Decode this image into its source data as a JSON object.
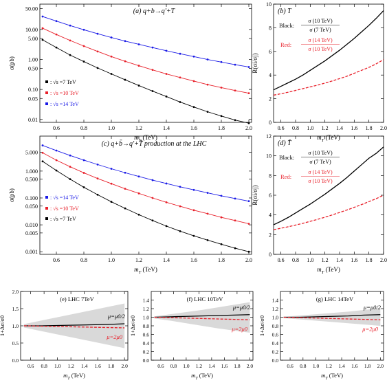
{
  "chart_data": [
    {
      "id": "a",
      "type": "line",
      "title": "(a) q+b→q′+T",
      "xlabel": "m_T (TeV)",
      "ylabel": "σ(pb)",
      "xlim": [
        0.48,
        2.02
      ],
      "ylim": [
        0.008,
        70
      ],
      "yscale": "log",
      "xticks": [
        "0.6",
        "0.8",
        "1.0",
        "1.2",
        "1.4",
        "1.6",
        "1.8",
        "2.0"
      ],
      "yticks": [
        "0.01",
        "0.05",
        "0.10",
        "0.50",
        "1.00",
        "5.00",
        "10.00",
        "50.00"
      ],
      "legend_position": "left",
      "series": [
        {
          "name": "√s =7 TeV",
          "color": "#000000",
          "x": [
            0.5,
            0.6,
            0.7,
            0.8,
            0.9,
            1.0,
            1.1,
            1.2,
            1.3,
            1.4,
            1.5,
            1.6,
            1.7,
            1.8,
            1.9,
            2.0
          ],
          "values": [
            4.5,
            2.5,
            1.4,
            0.85,
            0.52,
            0.33,
            0.21,
            0.135,
            0.088,
            0.058,
            0.038,
            0.026,
            0.018,
            0.013,
            0.0095,
            0.0075
          ]
        },
        {
          "name": "√s =10 TeV",
          "color": "#e8202a",
          "x": [
            0.5,
            0.6,
            0.7,
            0.8,
            0.9,
            1.0,
            1.1,
            1.2,
            1.3,
            1.4,
            1.5,
            1.6,
            1.7,
            1.8,
            1.9,
            2.0
          ],
          "values": [
            11.0,
            6.8,
            4.3,
            2.8,
            1.85,
            1.25,
            0.87,
            0.62,
            0.45,
            0.33,
            0.25,
            0.19,
            0.145,
            0.115,
            0.092,
            0.075
          ]
        },
        {
          "name": "√s =14 TeV",
          "color": "#1a1ae6",
          "x": [
            0.5,
            0.6,
            0.7,
            0.8,
            0.9,
            1.0,
            1.1,
            1.2,
            1.3,
            1.4,
            1.5,
            1.6,
            1.7,
            1.8,
            1.9,
            2.0
          ],
          "values": [
            27.0,
            19.0,
            13.5,
            9.8,
            7.2,
            5.4,
            4.1,
            3.2,
            2.5,
            1.95,
            1.55,
            1.25,
            1.0,
            0.82,
            0.67,
            0.56
          ]
        }
      ]
    },
    {
      "id": "b",
      "type": "line",
      "title": "(b) T",
      "xlabel": "m_T (TeV)",
      "ylabel": "R(σ_i/σ_j)",
      "xlim": [
        0.5,
        2.0
      ],
      "ylim": [
        0,
        10
      ],
      "xticks": [
        "0.6",
        "0.8",
        "1.0",
        "1.2",
        "1.4",
        "1.6",
        "1.8",
        "2.0"
      ],
      "yticks": [
        "0",
        "2",
        "4",
        "6",
        "8",
        "10"
      ],
      "annotation_black_label": "Black:",
      "annotation_black_num": "σ (10 TeV)",
      "annotation_black_den": "σ (7 TeV)",
      "annotation_red_label": "Red:",
      "annotation_red_num": "σ (14 TeV)",
      "annotation_red_den": "σ (10 TeV)",
      "series": [
        {
          "name": "σ (10 TeV) / σ (7 TeV)",
          "color": "#000000",
          "style": "solid",
          "x": [
            0.5,
            0.6,
            0.7,
            0.8,
            0.9,
            1.0,
            1.1,
            1.2,
            1.3,
            1.4,
            1.5,
            1.6,
            1.7,
            1.8,
            1.9,
            2.0
          ],
          "values": [
            2.75,
            3.05,
            3.35,
            3.65,
            4.0,
            4.4,
            4.8,
            5.2,
            5.65,
            6.1,
            6.6,
            7.1,
            7.65,
            8.2,
            8.8,
            9.45
          ]
        },
        {
          "name": "σ (14 TeV) / σ (10 TeV)",
          "color": "#e8202a",
          "style": "dashed",
          "x": [
            0.5,
            0.6,
            0.7,
            0.8,
            0.9,
            1.0,
            1.1,
            1.2,
            1.3,
            1.4,
            1.5,
            1.6,
            1.7,
            1.8,
            1.9,
            2.0
          ],
          "values": [
            2.3,
            2.42,
            2.55,
            2.7,
            2.85,
            3.0,
            3.15,
            3.32,
            3.5,
            3.7,
            3.9,
            4.15,
            4.4,
            4.65,
            4.95,
            5.3
          ]
        }
      ]
    },
    {
      "id": "c",
      "type": "line",
      "title": "(c) q+b̄→q′+T̄ production at the LHC",
      "xlabel": "m_T (TeV)",
      "ylabel": "σ(pb)",
      "xlim": [
        0.48,
        2.02
      ],
      "ylim": [
        0.0008,
        20
      ],
      "yscale": "log",
      "xticks": [
        "0.6",
        "0.8",
        "1.0",
        "1.2",
        "1.4",
        "1.6",
        "1.8",
        "2.0"
      ],
      "yticks": [
        "0.001",
        "0.005",
        "0.010",
        "0.050",
        "0.100",
        "0.500",
        "1.000",
        "5.000"
      ],
      "legend_position": "left",
      "series": [
        {
          "name": "√s =14 TeV",
          "color": "#1a1ae6",
          "x": [
            0.5,
            0.6,
            0.7,
            0.8,
            0.9,
            1.0,
            1.1,
            1.2,
            1.3,
            1.4,
            1.5,
            1.6,
            1.7,
            1.8,
            1.9,
            2.0
          ],
          "values": [
            9.0,
            5.8,
            3.8,
            2.55,
            1.75,
            1.22,
            0.87,
            0.63,
            0.46,
            0.345,
            0.26,
            0.2,
            0.155,
            0.12,
            0.095,
            0.076
          ]
        },
        {
          "name": "√s =10 TeV",
          "color": "#e8202a",
          "x": [
            0.5,
            0.6,
            0.7,
            0.8,
            0.9,
            1.0,
            1.1,
            1.2,
            1.3,
            1.4,
            1.5,
            1.6,
            1.7,
            1.8,
            1.9,
            2.0
          ],
          "values": [
            4.8,
            2.55,
            1.45,
            0.86,
            0.53,
            0.34,
            0.22,
            0.148,
            0.1,
            0.069,
            0.049,
            0.035,
            0.026,
            0.019,
            0.0145,
            0.011
          ]
        },
        {
          "name": "√s =7 TeV",
          "color": "#000000",
          "x": [
            0.5,
            0.6,
            0.7,
            0.8,
            0.9,
            1.0,
            1.1,
            1.2,
            1.3,
            1.4,
            1.5,
            1.6,
            1.7,
            1.8,
            1.9,
            2.0
          ],
          "values": [
            2.3,
            1.05,
            0.5,
            0.25,
            0.132,
            0.072,
            0.041,
            0.024,
            0.0145,
            0.009,
            0.0058,
            0.0039,
            0.0027,
            0.0019,
            0.00135,
            0.001
          ]
        }
      ]
    },
    {
      "id": "d",
      "type": "line",
      "title": "(d) T̄",
      "xlabel": "m_T (TeV)",
      "ylabel": "R(σ_i/σ_j)",
      "xlim": [
        0.5,
        2.0
      ],
      "ylim": [
        0,
        12
      ],
      "xticks": [
        "0.6",
        "0.8",
        "1.0",
        "1.2",
        "1.4",
        "1.6",
        "1.8",
        "2.0"
      ],
      "yticks": [
        "0",
        "2",
        "4",
        "6",
        "8",
        "10",
        "12"
      ],
      "annotation_black_label": "Black:",
      "annotation_black_num": "σ (10 TeV)",
      "annotation_black_den": "σ (7 TeV)",
      "annotation_red_label": "Red:",
      "annotation_red_num": "σ (14 TeV)",
      "annotation_red_den": "σ (10 TeV)",
      "series": [
        {
          "name": "σ (10 TeV) / σ (7 TeV)",
          "color": "#000000",
          "style": "solid",
          "x": [
            0.5,
            0.6,
            0.7,
            0.8,
            0.9,
            1.0,
            1.1,
            1.2,
            1.3,
            1.4,
            1.5,
            1.6,
            1.7,
            1.8,
            1.9,
            2.0
          ],
          "values": [
            3.0,
            3.35,
            3.75,
            4.2,
            4.65,
            5.1,
            5.6,
            6.1,
            6.65,
            7.2,
            7.8,
            8.45,
            9.1,
            9.75,
            10.25,
            10.9
          ]
        },
        {
          "name": "σ (14 TeV) / σ (10 TeV)",
          "color": "#e8202a",
          "style": "dashed",
          "x": [
            0.5,
            0.6,
            0.7,
            0.8,
            0.9,
            1.0,
            1.1,
            1.2,
            1.3,
            1.4,
            1.5,
            1.6,
            1.7,
            1.8,
            1.9,
            2.0
          ],
          "values": [
            2.5,
            2.65,
            2.8,
            2.97,
            3.15,
            3.35,
            3.55,
            3.77,
            4.0,
            4.25,
            4.5,
            4.77,
            5.05,
            5.35,
            5.65,
            6.0
          ]
        }
      ]
    },
    {
      "id": "e",
      "type": "area",
      "title": "(e) LHC  7TeV",
      "xlabel": "m_T (TeV)",
      "ylabel": "1+Δσ/σ_0",
      "xlim": [
        0.45,
        2.05
      ],
      "ylim": [
        0,
        2.0
      ],
      "xticks": [
        "0.6",
        "0.8",
        "1.0",
        "1.2",
        "1.4",
        "1.6",
        "1.8",
        "2.0"
      ],
      "yticks": [
        "0.0",
        "0.5",
        "1.0",
        "1.5",
        "2.0"
      ],
      "band_x": [
        0.5,
        0.75,
        1.0,
        1.25,
        1.5,
        1.75,
        2.0
      ],
      "band_upper": [
        1.05,
        1.15,
        1.25,
        1.35,
        1.45,
        1.55,
        1.65
      ],
      "band_lower": [
        0.95,
        0.85,
        0.75,
        0.65,
        0.55,
        0.45,
        0.35
      ],
      "label_upper": "μ=μ0/2",
      "label_lower": "μ=2μ0",
      "series": [
        {
          "name": "μ=μ0/2",
          "color": "#000000",
          "style": "solid",
          "x": [
            0.5,
            0.75,
            1.0,
            1.25,
            1.5,
            1.75,
            2.0
          ],
          "values": [
            1.0,
            1.0,
            1.01,
            1.02,
            1.03,
            1.04,
            1.06
          ]
        },
        {
          "name": "μ=2μ0",
          "color": "#e8202a",
          "style": "dashed",
          "x": [
            0.5,
            0.75,
            1.0,
            1.25,
            1.5,
            1.75,
            2.0
          ],
          "values": [
            1.0,
            0.99,
            0.98,
            0.97,
            0.96,
            0.95,
            0.94
          ]
        }
      ]
    },
    {
      "id": "f",
      "type": "area",
      "title": "(f) LHC 10TeV",
      "xlabel": "m_T (TeV)",
      "ylabel": "1+Δσ/σ_0",
      "xlim": [
        0.45,
        2.05
      ],
      "ylim": [
        0,
        1.6
      ],
      "xticks": [
        "0.6",
        "0.8",
        "1.0",
        "1.2",
        "1.4",
        "1.6",
        "1.8",
        "2.0"
      ],
      "yticks": [
        "0.0",
        "0.2",
        "0.4",
        "0.6",
        "0.8",
        "1.0",
        "1.2",
        "1.4"
      ],
      "band_x": [
        0.5,
        0.75,
        1.0,
        1.25,
        1.5,
        1.75,
        2.0
      ],
      "band_upper": [
        1.02,
        1.07,
        1.12,
        1.17,
        1.23,
        1.29,
        1.35
      ],
      "band_lower": [
        0.97,
        0.92,
        0.86,
        0.8,
        0.74,
        0.69,
        0.64
      ],
      "label_upper": "μ=μ0/2",
      "label_lower": "μ=2μ0",
      "series": [
        {
          "name": "μ=μ0/2",
          "color": "#000000",
          "style": "solid",
          "x": [
            0.5,
            0.75,
            1.0,
            1.25,
            1.5,
            1.75,
            2.0
          ],
          "values": [
            1.0,
            1.01,
            1.02,
            1.03,
            1.04,
            1.05,
            1.06
          ]
        },
        {
          "name": "μ=2μ0",
          "color": "#e8202a",
          "style": "dashed",
          "x": [
            0.5,
            0.75,
            1.0,
            1.25,
            1.5,
            1.75,
            2.0
          ],
          "values": [
            1.0,
            0.99,
            0.98,
            0.97,
            0.96,
            0.95,
            0.94
          ]
        }
      ]
    },
    {
      "id": "g",
      "type": "area",
      "title": "(g) LHC 14TeV",
      "xlabel": "m_T (TeV)",
      "ylabel": "1+Δσ/σ_0",
      "xlim": [
        0.45,
        2.05
      ],
      "ylim": [
        0,
        1.6
      ],
      "xticks": [
        "0.6",
        "0.8",
        "1.0",
        "1.2",
        "1.4",
        "1.6",
        "1.8",
        "2.0"
      ],
      "yticks": [
        "0.0",
        "0.2",
        "0.4",
        "0.6",
        "0.8",
        "1.0",
        "1.2",
        "1.4"
      ],
      "band_x": [
        0.5,
        0.75,
        1.0,
        1.25,
        1.5,
        1.75,
        2.0
      ],
      "band_upper": [
        1.01,
        1.04,
        1.07,
        1.1,
        1.13,
        1.17,
        1.21
      ],
      "band_lower": [
        0.98,
        0.95,
        0.92,
        0.89,
        0.86,
        0.83,
        0.8
      ],
      "label_upper": "μ=μ0/2",
      "label_lower": "μ=2μ0",
      "series": [
        {
          "name": "μ=μ0/2",
          "color": "#000000",
          "style": "solid",
          "x": [
            0.5,
            0.75,
            1.0,
            1.25,
            1.5,
            1.75,
            2.0
          ],
          "values": [
            1.0,
            1.0,
            1.01,
            1.02,
            1.03,
            1.05,
            1.06
          ]
        },
        {
          "name": "μ=2μ0",
          "color": "#e8202a",
          "style": "dashed",
          "x": [
            0.5,
            0.75,
            1.0,
            1.25,
            1.5,
            1.75,
            2.0
          ],
          "values": [
            1.0,
            0.99,
            0.98,
            0.97,
            0.96,
            0.95,
            0.94
          ]
        }
      ]
    }
  ]
}
